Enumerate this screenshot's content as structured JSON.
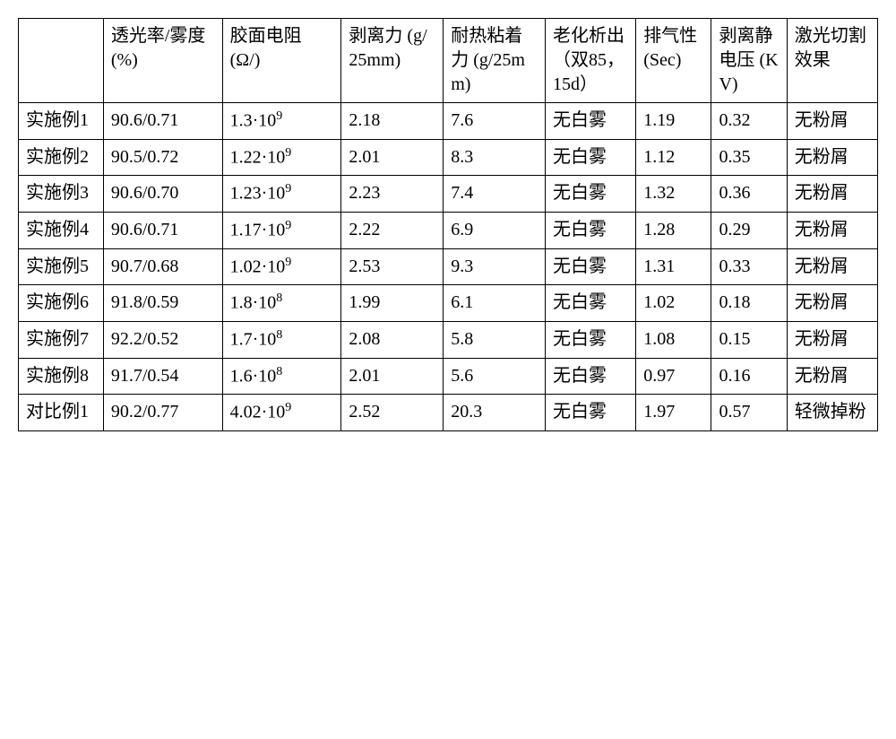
{
  "table": {
    "columns": [
      "",
      "透光率/雾度 (%)",
      "胶面电阻 (Ω/)",
      "剥离力 (g/25mm)",
      "耐热粘着力 (g/25mm)",
      "老化析出 （双85，15d）",
      "排气性 (Sec)",
      "剥离静电压 (KV)",
      "激光切割效果"
    ],
    "rows": [
      {
        "label": "实施例1",
        "c1": "90.6/0.71",
        "c2": {
          "base": "1.3·10",
          "exp": "9"
        },
        "c3": "2.18",
        "c4": "7.6",
        "c5": "无白雾",
        "c6": "1.19",
        "c7": "0.32",
        "c8": "无粉屑"
      },
      {
        "label": "实施例2",
        "c1": "90.5/0.72",
        "c2": {
          "base": "1.22·10",
          "exp": "9"
        },
        "c3": "2.01",
        "c4": "8.3",
        "c5": "无白雾",
        "c6": "1.12",
        "c7": "0.35",
        "c8": "无粉屑"
      },
      {
        "label": "实施例3",
        "c1": "90.6/0.70",
        "c2": {
          "base": "1.23·10",
          "exp": "9"
        },
        "c3": "2.23",
        "c4": "7.4",
        "c5": "无白雾",
        "c6": "1.32",
        "c7": "0.36",
        "c8": "无粉屑"
      },
      {
        "label": "实施例4",
        "c1": "90.6/0.71",
        "c2": {
          "base": "1.17·10",
          "exp": "9"
        },
        "c3": "2.22",
        "c4": "6.9",
        "c5": "无白雾",
        "c6": "1.28",
        "c7": "0.29",
        "c8": "无粉屑"
      },
      {
        "label": "实施例5",
        "c1": "90.7/0.68",
        "c2": {
          "base": "1.02·10",
          "exp": "9"
        },
        "c3": "2.53",
        "c4": "9.3",
        "c5": "无白雾",
        "c6": "1.31",
        "c7": "0.33",
        "c8": "无粉屑"
      },
      {
        "label": "实施例6",
        "c1": "91.8/0.59",
        "c2": {
          "base": "1.8·10",
          "exp": "8"
        },
        "c3": "1.99",
        "c4": "6.1",
        "c5": "无白雾",
        "c6": "1.02",
        "c7": "0.18",
        "c8": "无粉屑"
      },
      {
        "label": "实施例7",
        "c1": "92.2/0.52",
        "c2": {
          "base": "1.7·10",
          "exp": "8"
        },
        "c3": "2.08",
        "c4": "5.8",
        "c5": "无白雾",
        "c6": "1.08",
        "c7": "0.15",
        "c8": "无粉屑"
      },
      {
        "label": "实施例8",
        "c1": "91.7/0.54",
        "c2": {
          "base": "1.6·10",
          "exp": "8"
        },
        "c3": "2.01",
        "c4": "5.6",
        "c5": "无白雾",
        "c6": "0.97",
        "c7": "0.16",
        "c8": "无粉屑"
      },
      {
        "label": "对比例1",
        "c1": "90.2/0.77",
        "c2": {
          "base": "4.02·10",
          "exp": "9"
        },
        "c3": "2.52",
        "c4": "20.3",
        "c5": "无白雾",
        "c6": "1.97",
        "c7": "0.57",
        "c8": "轻微掉粉"
      }
    ],
    "font_family": "SimSun",
    "font_size_pt": 15,
    "border_color": "#000000",
    "background_color": "#ffffff",
    "text_color": "#000000"
  }
}
